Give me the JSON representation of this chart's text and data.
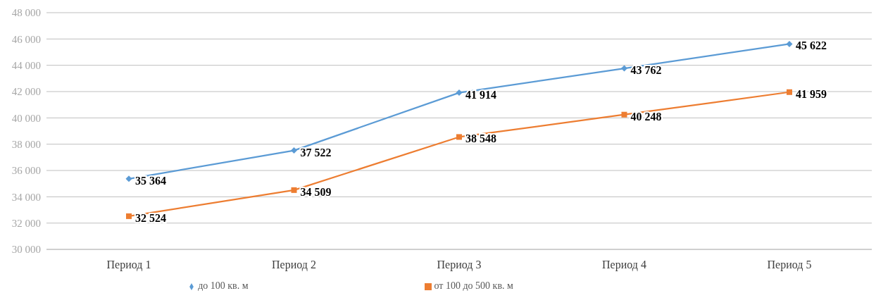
{
  "chart_data": {
    "type": "line",
    "categories": [
      "Период 1",
      "Период 2",
      "Период 3",
      "Период 4",
      "Период 5"
    ],
    "series": [
      {
        "name": "до 100 кв. м",
        "color": "#5b9bd5",
        "marker": "diamond",
        "values": [
          35364,
          37522,
          41914,
          43762,
          45622
        ],
        "value_labels": [
          "35 364",
          "37 522",
          "41 914",
          "43 762",
          "45 622"
        ]
      },
      {
        "name": "от 100 до 500 кв. м",
        "color": "#ed7d31",
        "marker": "square",
        "values": [
          32524,
          34509,
          38548,
          40248,
          41959
        ],
        "value_labels": [
          "32 524",
          "34 509",
          "38 548",
          "40 248",
          "41 959"
        ]
      }
    ],
    "ylim": [
      30000,
      48000
    ],
    "yticks": [
      {
        "value": 30000,
        "label": "30 000"
      },
      {
        "value": 32000,
        "label": "32 000"
      },
      {
        "value": 34000,
        "label": "34 000"
      },
      {
        "value": 36000,
        "label": "36 000"
      },
      {
        "value": 38000,
        "label": "38 000"
      },
      {
        "value": 40000,
        "label": "40 000"
      },
      {
        "value": 42000,
        "label": "42 000"
      },
      {
        "value": 44000,
        "label": "44 000"
      },
      {
        "value": 46000,
        "label": "46 000"
      },
      {
        "value": 48000,
        "label": "48 000"
      }
    ],
    "grid": "y",
    "legend": "bottom"
  }
}
